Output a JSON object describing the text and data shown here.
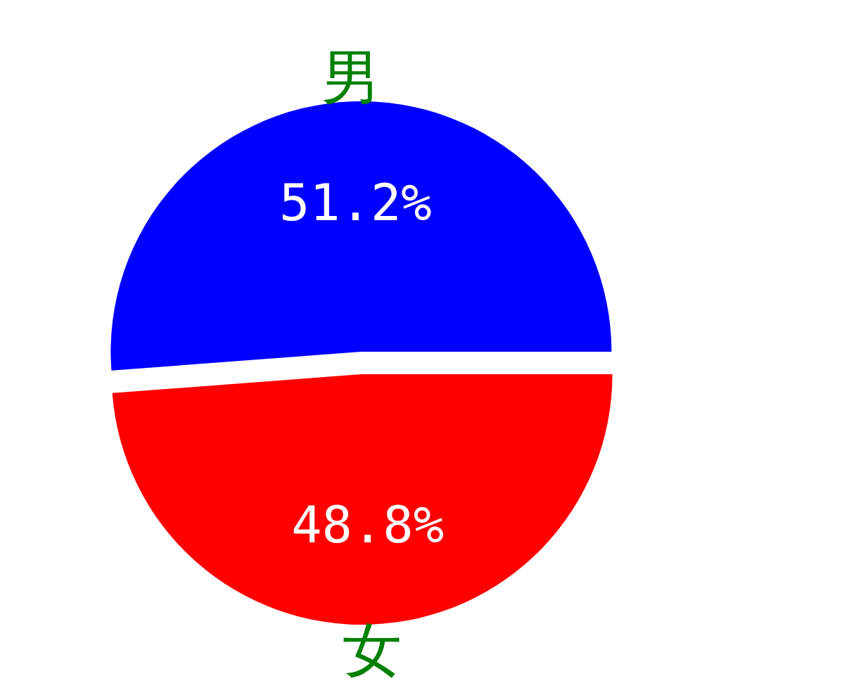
{
  "chart_data": {
    "type": "pie",
    "categories": [
      "男",
      "女"
    ],
    "values": [
      51.2,
      48.8
    ],
    "colors": [
      "#0000ff",
      "#ff0000"
    ],
    "value_labels": [
      "51.2%",
      "48.8%"
    ]
  }
}
